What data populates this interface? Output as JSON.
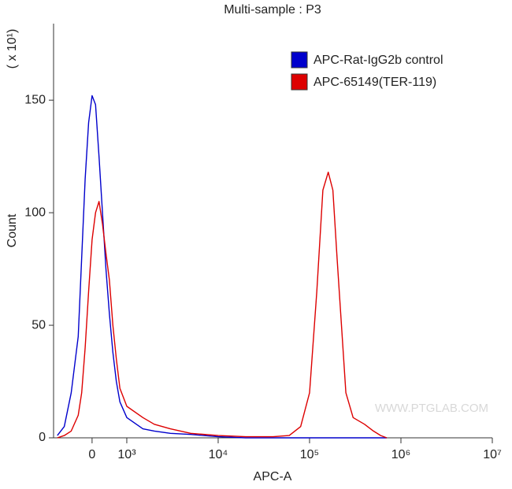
{
  "chart_data": {
    "type": "line",
    "title": "Multi-sample : P3",
    "x_label": "APC-A",
    "y_label": "Count",
    "y_multiplier": "( x 10¹)",
    "watermark": "WWW.PTGLAB.COM",
    "xscale": "symlog",
    "linthresh": 1000,
    "linscale": 0.38,
    "xlim": [
      -1100,
      10000000
    ],
    "xticks": [
      0,
      {
        "value": 1000,
        "label": "10³"
      },
      {
        "value": 10000,
        "label": "10⁴"
      },
      {
        "value": 100000,
        "label": "10⁵"
      },
      {
        "value": 1000000,
        "label": "10⁶"
      },
      {
        "value": 10000000,
        "label": "10⁷"
      }
    ],
    "ylim": [
      0,
      184
    ],
    "yticks": [
      0,
      50,
      100,
      150
    ],
    "grid": false,
    "legend": "upper right",
    "x": [
      -1000,
      -800,
      -600,
      -400,
      -300,
      -200,
      -100,
      0,
      100,
      200,
      300,
      400,
      500,
      600,
      700,
      800,
      1000,
      1500,
      2000,
      3000,
      5000,
      10000,
      20000,
      40000,
      60000,
      80000,
      100000,
      120000,
      140000,
      160000,
      180000,
      200000,
      250000,
      300000,
      400000,
      500000,
      600000,
      700000
    ],
    "series": [
      {
        "name": "APC-Rat-IgG2b control",
        "color": "#0000cc",
        "values": [
          1,
          5,
          20,
          45,
          80,
          115,
          140,
          152,
          148,
          125,
          100,
          75,
          55,
          38,
          25,
          16,
          9,
          4,
          3,
          2,
          1.5,
          0.5,
          0,
          0,
          0,
          0,
          0,
          0,
          0,
          0,
          0,
          0,
          0,
          0,
          0,
          0,
          0,
          0
        ]
      },
      {
        "name": "APC-65149(TER-119)",
        "color": "#dd0000",
        "values": [
          0,
          1,
          3,
          10,
          20,
          40,
          65,
          88,
          100,
          105,
          95,
          82,
          70,
          50,
          35,
          22,
          14,
          9,
          6,
          4,
          2,
          1,
          0.5,
          0.5,
          1,
          5,
          20,
          65,
          110,
          118,
          110,
          80,
          20,
          9,
          6,
          3,
          1,
          0
        ]
      }
    ]
  }
}
